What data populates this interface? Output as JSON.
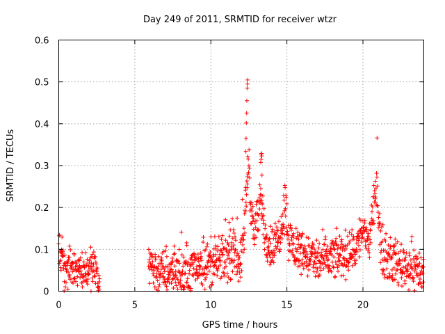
{
  "chart_data": {
    "type": "scatter",
    "title": "Day 249 of 2011, SRMTID for receiver wtzr",
    "xlabel": "GPS time / hours",
    "ylabel": "SRMTID / TECUs",
    "xlim": [
      0,
      24
    ],
    "ylim": [
      0,
      0.6
    ],
    "xticks": [
      "0",
      "5",
      "10",
      "15",
      "20"
    ],
    "yticks": [
      "0",
      "0.1",
      "0.2",
      "0.3",
      "0.4",
      "0.5",
      "0.6"
    ],
    "grid": true,
    "marker": "plus",
    "color": "#ff0000",
    "series": [
      {
        "name": "SRMTID",
        "segments": [
          {
            "x_start": 0.0,
            "x_end": 2.7,
            "profile": [
              [
                0.0,
                0.1
              ],
              [
                0.1,
                0.09
              ],
              [
                0.3,
                0.055
              ],
              [
                0.8,
                0.05
              ],
              [
                1.2,
                0.06
              ],
              [
                1.6,
                0.05
              ],
              [
                2.0,
                0.055
              ],
              [
                2.4,
                0.06
              ],
              [
                2.7,
                0.02
              ]
            ],
            "spread": 0.035
          },
          {
            "x_start": 5.9,
            "x_end": 24.0,
            "profile": [
              [
                5.9,
                0.08
              ],
              [
                6.3,
                0.05
              ],
              [
                7.0,
                0.045
              ],
              [
                7.6,
                0.05
              ],
              [
                8.0,
                0.035
              ],
              [
                8.5,
                0.05
              ],
              [
                9.0,
                0.06
              ],
              [
                9.5,
                0.065
              ],
              [
                10.0,
                0.065
              ],
              [
                10.5,
                0.07
              ],
              [
                11.0,
                0.08
              ],
              [
                11.6,
                0.09
              ],
              [
                12.0,
                0.07
              ],
              [
                12.2,
                0.15
              ],
              [
                12.4,
                0.27
              ],
              [
                12.5,
                0.33
              ],
              [
                12.6,
                0.22
              ],
              [
                12.8,
                0.14
              ],
              [
                13.1,
                0.17
              ],
              [
                13.3,
                0.22
              ],
              [
                13.6,
                0.13
              ],
              [
                14.0,
                0.1
              ],
              [
                14.4,
                0.12
              ],
              [
                14.7,
                0.17
              ],
              [
                14.9,
                0.21
              ],
              [
                15.1,
                0.13
              ],
              [
                15.5,
                0.1
              ],
              [
                16.0,
                0.1
              ],
              [
                16.5,
                0.08
              ],
              [
                17.0,
                0.07
              ],
              [
                17.5,
                0.075
              ],
              [
                18.0,
                0.08
              ],
              [
                18.5,
                0.085
              ],
              [
                19.0,
                0.09
              ],
              [
                19.5,
                0.1
              ],
              [
                19.8,
                0.13
              ],
              [
                20.1,
                0.15
              ],
              [
                20.4,
                0.11
              ],
              [
                20.7,
                0.19
              ],
              [
                20.9,
                0.26
              ],
              [
                21.0,
                0.22
              ],
              [
                21.2,
                0.09
              ],
              [
                21.6,
                0.08
              ],
              [
                22.0,
                0.07
              ],
              [
                22.5,
                0.065
              ],
              [
                23.0,
                0.06
              ],
              [
                23.5,
                0.055
              ],
              [
                24.0,
                0.04
              ]
            ],
            "spread": 0.04
          },
          {
            "x_start": 12.3,
            "x_end": 12.42,
            "profile": [
              [
                12.3,
                0.33
              ],
              [
                12.36,
                0.45
              ],
              [
                12.42,
                0.51
              ]
            ],
            "spread": 0.01
          },
          {
            "x_start": 13.28,
            "x_end": 13.38,
            "profile": [
              [
                13.28,
                0.3
              ],
              [
                13.33,
                0.34
              ],
              [
                13.38,
                0.27
              ]
            ],
            "spread": 0.01
          }
        ]
      }
    ]
  }
}
